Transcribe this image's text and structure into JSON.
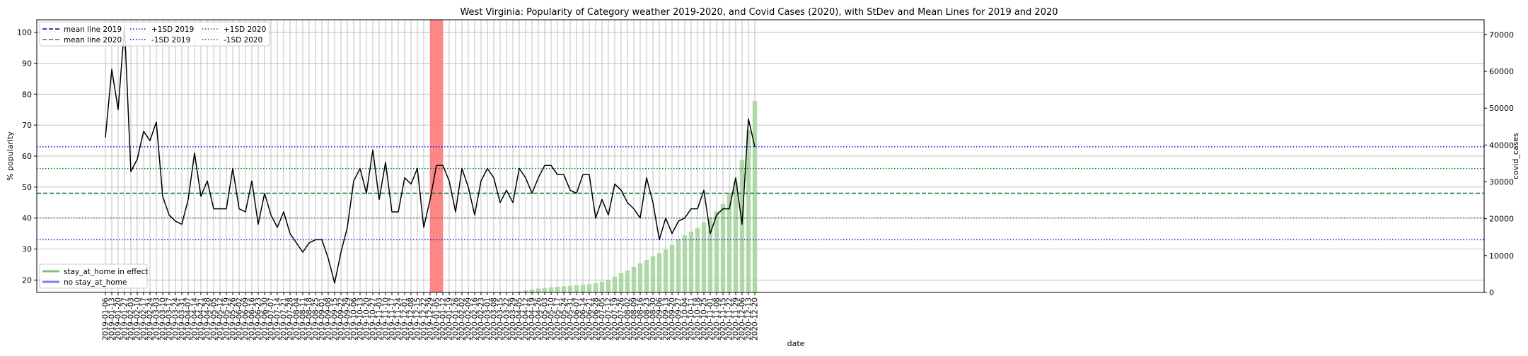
{
  "chart_data": {
    "type": "line+bar",
    "title": "West Virginia: Popularity of Category weather 2019-2020, and Covid Cases (2020), with StDev and Mean Lines for 2019 and 2020",
    "xlabel": "date",
    "ylabel_left": "% popularity",
    "ylabel_right": "covid_cases",
    "ylim_left": [
      16,
      104
    ],
    "ylim_right": [
      0,
      74000
    ],
    "yticks_left": [
      20,
      30,
      40,
      50,
      60,
      70,
      80,
      90,
      100
    ],
    "yticks_right": [
      0,
      10000,
      20000,
      30000,
      40000,
      50000,
      60000,
      70000
    ],
    "grid": true,
    "x": [
      "2019-01-06",
      "2019-01-13",
      "2019-01-20",
      "2019-01-27",
      "2019-02-03",
      "2019-02-10",
      "2019-02-17",
      "2019-02-24",
      "2019-03-03",
      "2019-03-10",
      "2019-03-17",
      "2019-03-24",
      "2019-03-31",
      "2019-04-07",
      "2019-04-14",
      "2019-04-21",
      "2019-04-28",
      "2019-05-05",
      "2019-05-12",
      "2019-05-19",
      "2019-05-26",
      "2019-06-02",
      "2019-06-09",
      "2019-06-16",
      "2019-06-23",
      "2019-06-30",
      "2019-07-07",
      "2019-07-14",
      "2019-07-21",
      "2019-07-28",
      "2019-08-04",
      "2019-08-11",
      "2019-08-18",
      "2019-08-25",
      "2019-09-01",
      "2019-09-08",
      "2019-09-15",
      "2019-09-22",
      "2019-09-29",
      "2019-10-06",
      "2019-10-13",
      "2019-10-20",
      "2019-10-27",
      "2019-11-03",
      "2019-11-10",
      "2019-11-17",
      "2019-11-24",
      "2019-12-01",
      "2019-12-08",
      "2019-12-15",
      "2019-12-22",
      "2019-12-29",
      "2020-01-05",
      "2020-01-12",
      "2020-01-19",
      "2020-01-26",
      "2020-02-02",
      "2020-02-09",
      "2020-02-16",
      "2020-02-23",
      "2020-03-01",
      "2020-03-08",
      "2020-03-15",
      "2020-03-22",
      "2020-03-29",
      "2020-04-05",
      "2020-04-12",
      "2020-04-19",
      "2020-04-26",
      "2020-05-03",
      "2020-05-10",
      "2020-05-17",
      "2020-05-24",
      "2020-05-31",
      "2020-06-07",
      "2020-06-14",
      "2020-06-21",
      "2020-06-28",
      "2020-07-05",
      "2020-07-12",
      "2020-07-19",
      "2020-07-26",
      "2020-08-02",
      "2020-08-09",
      "2020-08-16",
      "2020-08-23",
      "2020-08-30",
      "2020-09-06",
      "2020-09-13",
      "2020-09-20",
      "2020-09-27",
      "2020-10-04",
      "2020-10-11",
      "2020-10-18",
      "2020-10-25",
      "2020-11-01",
      "2020-11-08",
      "2020-11-15",
      "2020-11-22",
      "2020-11-29",
      "2020-12-06",
      "2020-12-13",
      "2020-12-20"
    ],
    "popularity": [
      66,
      88,
      75,
      102,
      55,
      59,
      68,
      65,
      71,
      47,
      41,
      39,
      38,
      46,
      61,
      47,
      52,
      43,
      43,
      43,
      56,
      43,
      42,
      52,
      38,
      48,
      41,
      37,
      42,
      35,
      32,
      29,
      32,
      33,
      33,
      27,
      19,
      29,
      37,
      52,
      56,
      48,
      62,
      46,
      58,
      42,
      42,
      53,
      51,
      56,
      37,
      46,
      57,
      57,
      52,
      42,
      56,
      50,
      41,
      52,
      56,
      53,
      45,
      49,
      45,
      56,
      53,
      48,
      53,
      57,
      57,
      54,
      54,
      49,
      48,
      54,
      54,
      40,
      46,
      41,
      51,
      49,
      45,
      43,
      40,
      53,
      45,
      33,
      40,
      35,
      39,
      40,
      43,
      43,
      49,
      35,
      41,
      43,
      43,
      53,
      38,
      72,
      63
    ],
    "covid_cases": [
      0,
      0,
      0,
      0,
      0,
      0,
      0,
      0,
      0,
      0,
      0,
      0,
      0,
      0,
      0,
      0,
      0,
      0,
      0,
      0,
      0,
      0,
      0,
      0,
      0,
      0,
      0,
      0,
      0,
      0,
      0,
      0,
      0,
      0,
      0,
      0,
      0,
      0,
      0,
      0,
      0,
      0,
      0,
      0,
      0,
      0,
      0,
      0,
      0,
      0,
      0,
      0,
      0,
      0,
      0,
      0,
      0,
      0,
      0,
      0,
      0,
      0,
      0,
      0,
      0,
      300,
      550,
      800,
      1050,
      1250,
      1400,
      1550,
      1650,
      1800,
      1950,
      2100,
      2250,
      2450,
      2900,
      3400,
      4300,
      5200,
      6000,
      6900,
      7900,
      8800,
      9800,
      10700,
      11600,
      12900,
      14400,
      15500,
      16500,
      17500,
      19000,
      20500,
      22000,
      24000,
      27000,
      30000,
      36000,
      44000,
      52000
    ],
    "mean_line_2019": 48,
    "mean_line_2020": 48,
    "plus_1sd_2019": 63,
    "minus_1sd_2019": 33,
    "plus_1sd_2020": 56,
    "minus_1sd_2020": 40,
    "highlight_index": 52,
    "colors": {
      "popularity_line": "#000000",
      "bars": "#a8d5a0",
      "highlight": "#ff7f7f",
      "line_2019": "#0000ff",
      "line_2020": "#008000",
      "mean_2019": "#00008b",
      "mean_2020": "#228b22",
      "grid": "#b0b0b0"
    },
    "legend_top": {
      "position": "top-left",
      "entries": [
        {
          "label": "mean line 2019",
          "style": "dashed",
          "color": "#00008b"
        },
        {
          "label": "mean line 2020",
          "style": "dashed",
          "color": "#228b22"
        },
        {
          "label": "+1SD 2019",
          "style": "dotted",
          "color": "#0000ff"
        },
        {
          "label": "-1SD 2019",
          "style": "dotted",
          "color": "#0000ff"
        },
        {
          "label": "+1SD 2020",
          "style": "dotted",
          "color": "#008000"
        },
        {
          "label": "-1SD 2020",
          "style": "dotted",
          "color": "#008000"
        }
      ]
    },
    "legend_bottom": {
      "position": "bottom-left",
      "entries": [
        {
          "label": "stay_at_home in effect",
          "color": "#7fbf7f"
        },
        {
          "label": "no stay_at_home",
          "color": "#7f7fff"
        }
      ]
    }
  }
}
